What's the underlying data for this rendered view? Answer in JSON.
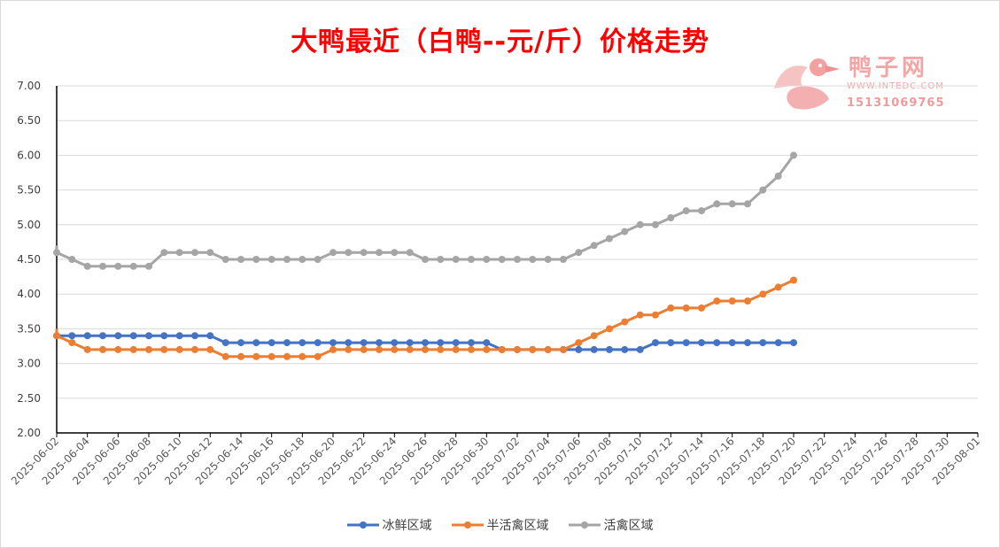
{
  "chart_data": {
    "type": "line",
    "title": "大鸭最近（白鸭--元/斤）价格走势",
    "watermark": {
      "name": "鸭子网",
      "site": "WWW.INTEDC.COM",
      "phone": "15131069765"
    },
    "xlabel": "",
    "ylabel": "",
    "ylim": [
      2.0,
      7.0
    ],
    "y_ticks": [
      "2.00",
      "2.50",
      "3.00",
      "3.50",
      "4.00",
      "4.50",
      "5.00",
      "5.50",
      "6.00",
      "6.50",
      "7.00"
    ],
    "x_range": [
      "2025-06-02",
      "2025-08-01"
    ],
    "x_ticks": [
      "2025-06-02",
      "2025-06-04",
      "2025-06-06",
      "2025-06-08",
      "2025-06-10",
      "2025-06-12",
      "2025-06-14",
      "2025-06-16",
      "2025-06-18",
      "2025-06-20",
      "2025-06-22",
      "2025-06-24",
      "2025-06-26",
      "2025-06-28",
      "2025-06-30",
      "2025-07-02",
      "2025-07-04",
      "2025-07-06",
      "2025-07-08",
      "2025-07-10",
      "2025-07-12",
      "2025-07-14",
      "2025-07-16",
      "2025-07-18",
      "2025-07-20",
      "2025-07-22",
      "2025-07-24",
      "2025-07-26",
      "2025-07-28",
      "2025-07-30",
      "2025-08-01"
    ],
    "grid": true,
    "legend_position": "bottom",
    "x": [
      "2025-06-02",
      "2025-06-03",
      "2025-06-04",
      "2025-06-05",
      "2025-06-06",
      "2025-06-07",
      "2025-06-08",
      "2025-06-09",
      "2025-06-10",
      "2025-06-11",
      "2025-06-12",
      "2025-06-13",
      "2025-06-14",
      "2025-06-15",
      "2025-06-16",
      "2025-06-17",
      "2025-06-18",
      "2025-06-19",
      "2025-06-20",
      "2025-06-21",
      "2025-06-22",
      "2025-06-23",
      "2025-06-24",
      "2025-06-25",
      "2025-06-26",
      "2025-06-27",
      "2025-06-28",
      "2025-06-29",
      "2025-06-30",
      "2025-07-01",
      "2025-07-02",
      "2025-07-03",
      "2025-07-04",
      "2025-07-05",
      "2025-07-06",
      "2025-07-07",
      "2025-07-08",
      "2025-07-09",
      "2025-07-10",
      "2025-07-11",
      "2025-07-12",
      "2025-07-13",
      "2025-07-14",
      "2025-07-15",
      "2025-07-16",
      "2025-07-17",
      "2025-07-18",
      "2025-07-19",
      "2025-07-20"
    ],
    "series": [
      {
        "name": "冰鲜区域",
        "color": "#4472c4",
        "values": [
          3.4,
          3.4,
          3.4,
          3.4,
          3.4,
          3.4,
          3.4,
          3.4,
          3.4,
          3.4,
          3.4,
          3.3,
          3.3,
          3.3,
          3.3,
          3.3,
          3.3,
          3.3,
          3.3,
          3.3,
          3.3,
          3.3,
          3.3,
          3.3,
          3.3,
          3.3,
          3.3,
          3.3,
          3.3,
          3.2,
          3.2,
          3.2,
          3.2,
          3.2,
          3.2,
          3.2,
          3.2,
          3.2,
          3.2,
          3.3,
          3.3,
          3.3,
          3.3,
          3.3,
          3.3,
          3.3,
          3.3,
          3.3,
          3.3
        ]
      },
      {
        "name": "半活禽区域",
        "color": "#ed7d31",
        "values": [
          3.4,
          3.3,
          3.2,
          3.2,
          3.2,
          3.2,
          3.2,
          3.2,
          3.2,
          3.2,
          3.2,
          3.1,
          3.1,
          3.1,
          3.1,
          3.1,
          3.1,
          3.1,
          3.2,
          3.2,
          3.2,
          3.2,
          3.2,
          3.2,
          3.2,
          3.2,
          3.2,
          3.2,
          3.2,
          3.2,
          3.2,
          3.2,
          3.2,
          3.2,
          3.3,
          3.4,
          3.5,
          3.6,
          3.7,
          3.7,
          3.8,
          3.8,
          3.8,
          3.9,
          3.9,
          3.9,
          4.0,
          4.1,
          4.2
        ]
      },
      {
        "name": "活禽区域",
        "color": "#a5a5a5",
        "values": [
          4.6,
          4.5,
          4.4,
          4.4,
          4.4,
          4.4,
          4.4,
          4.6,
          4.6,
          4.6,
          4.6,
          4.5,
          4.5,
          4.5,
          4.5,
          4.5,
          4.5,
          4.5,
          4.6,
          4.6,
          4.6,
          4.6,
          4.6,
          4.6,
          4.5,
          4.5,
          4.5,
          4.5,
          4.5,
          4.5,
          4.5,
          4.5,
          4.5,
          4.5,
          4.6,
          4.7,
          4.8,
          4.9,
          5.0,
          5.0,
          5.1,
          5.2,
          5.2,
          5.3,
          5.3,
          5.3,
          5.5,
          5.7,
          6.0
        ]
      }
    ]
  }
}
